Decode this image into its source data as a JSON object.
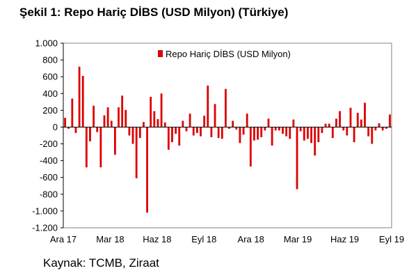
{
  "title": "Şekil 1: Repo Hariç DİBS (USD Milyon) (Türkiye)",
  "source": "Kaynak: TCMB, Ziraat",
  "colors": {
    "bar": "#dd0000",
    "axis": "#000000",
    "frame": "#808080"
  },
  "chart_data": {
    "type": "bar",
    "title": "Şekil 1: Repo Hariç DİBS (USD Milyon) (Türkiye)",
    "xlabel": "",
    "ylabel": "",
    "ylim": [
      -1200,
      1000
    ],
    "yticks": [
      1000,
      800,
      600,
      400,
      200,
      0,
      -200,
      -400,
      -600,
      -800,
      -1000,
      -1200
    ],
    "ytick_labels": [
      "1.000",
      "800",
      "600",
      "400",
      "200",
      "0",
      "-200",
      "-400",
      "-600",
      "-800",
      "-1.000",
      "-1.200"
    ],
    "xtick_labels": [
      "Ara 17",
      "Mar 18",
      "Haz 18",
      "Eyl 18",
      "Ara 18",
      "Mar 19",
      "Haz 19",
      "Eyl 19"
    ],
    "grid": false,
    "legend_position": "top-center",
    "series": [
      {
        "name": "Repo Hariç DİBS (USD Milyon)",
        "values": [
          110,
          -20,
          340,
          -70,
          720,
          610,
          -480,
          -170,
          255,
          -60,
          -480,
          140,
          235,
          75,
          -330,
          235,
          375,
          205,
          -100,
          -200,
          -610,
          -130,
          60,
          -1020,
          360,
          190,
          95,
          400,
          55,
          -270,
          -180,
          -80,
          -220,
          75,
          -50,
          160,
          -100,
          -70,
          -110,
          135,
          495,
          -120,
          275,
          -130,
          -140,
          455,
          -20,
          75,
          -30,
          -190,
          -90,
          160,
          -470,
          -160,
          -150,
          -120,
          -40,
          100,
          -220,
          -40,
          -40,
          -80,
          -110,
          -140,
          90,
          -740,
          -50,
          -160,
          -140,
          -190,
          -340,
          -180,
          -70,
          40,
          40,
          -130,
          100,
          190,
          -40,
          -100,
          230,
          -180,
          170,
          90,
          290,
          -110,
          -200,
          -40,
          45,
          -40,
          -20,
          150
        ]
      }
    ]
  }
}
